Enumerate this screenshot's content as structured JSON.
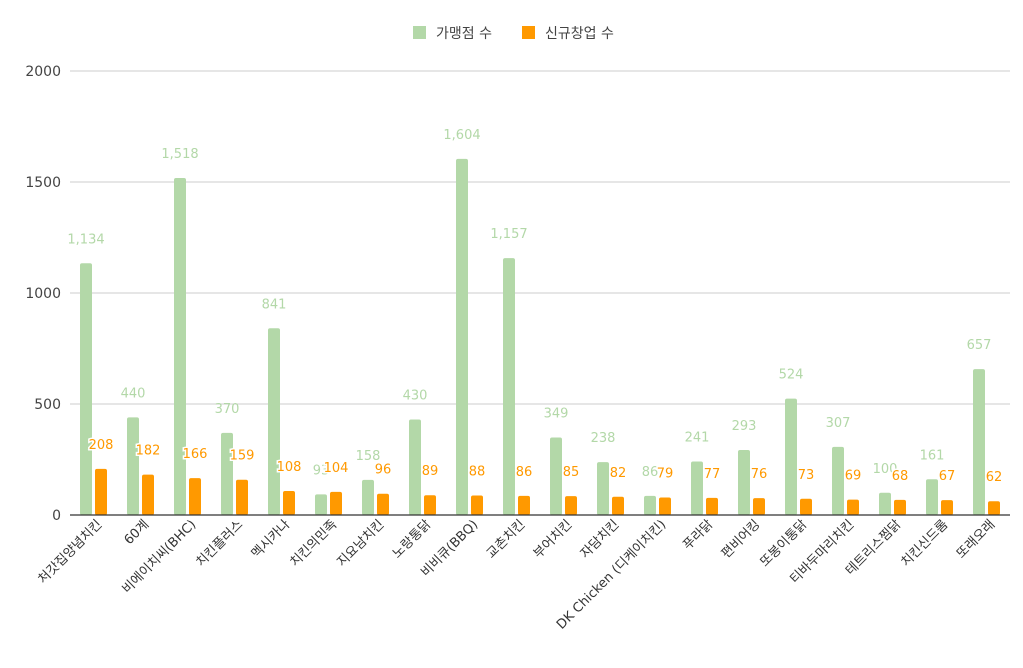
{
  "chart_data": {
    "type": "bar",
    "legend_position": "top-center",
    "grid": true,
    "ylim": [
      0,
      2000
    ],
    "yticks": [
      0,
      500,
      1000,
      1500,
      2000
    ],
    "categories": [
      "처갓집양념치킨",
      "60계",
      "비에이치씨(BHC)",
      "치킨플러스",
      "멕시카나",
      "치킨의민족",
      "지요남치킨",
      "노랑통닭",
      "비비큐(BBQ)",
      "교촌치킨",
      "부어치킨",
      "자담치킨",
      "DK Chicken (디케이치킨)",
      "푸라닭",
      "편비어킹",
      "또봉이통닭",
      "티바두마리치킨",
      "테트리스찜닭",
      "치킨신드롬",
      "또래오래"
    ],
    "series": [
      {
        "name": "가맹점 수",
        "color": "#b3d8a8",
        "values": [
          1134,
          440,
          1518,
          370,
          841,
          93,
          158,
          430,
          1604,
          1157,
          349,
          238,
          86,
          241,
          293,
          524,
          307,
          100,
          161,
          657
        ],
        "labels": [
          "1,134",
          "440",
          "1,518",
          "370",
          "841",
          "93",
          "158",
          "430",
          "1,604",
          "1,157",
          "349",
          "238",
          "86",
          "241",
          "293",
          "524",
          "307",
          "100",
          "161",
          "657"
        ]
      },
      {
        "name": "신규창업 수",
        "color": "#ff9900",
        "values": [
          208,
          182,
          166,
          159,
          108,
          104,
          96,
          89,
          88,
          86,
          85,
          82,
          79,
          77,
          76,
          73,
          69,
          68,
          67,
          62
        ],
        "labels": [
          "208",
          "182",
          "166",
          "159",
          "108",
          "104",
          "96",
          "89",
          "88",
          "86",
          "85",
          "82",
          "79",
          "77",
          "76",
          "73",
          "69",
          "68",
          "67",
          "62"
        ]
      }
    ]
  }
}
